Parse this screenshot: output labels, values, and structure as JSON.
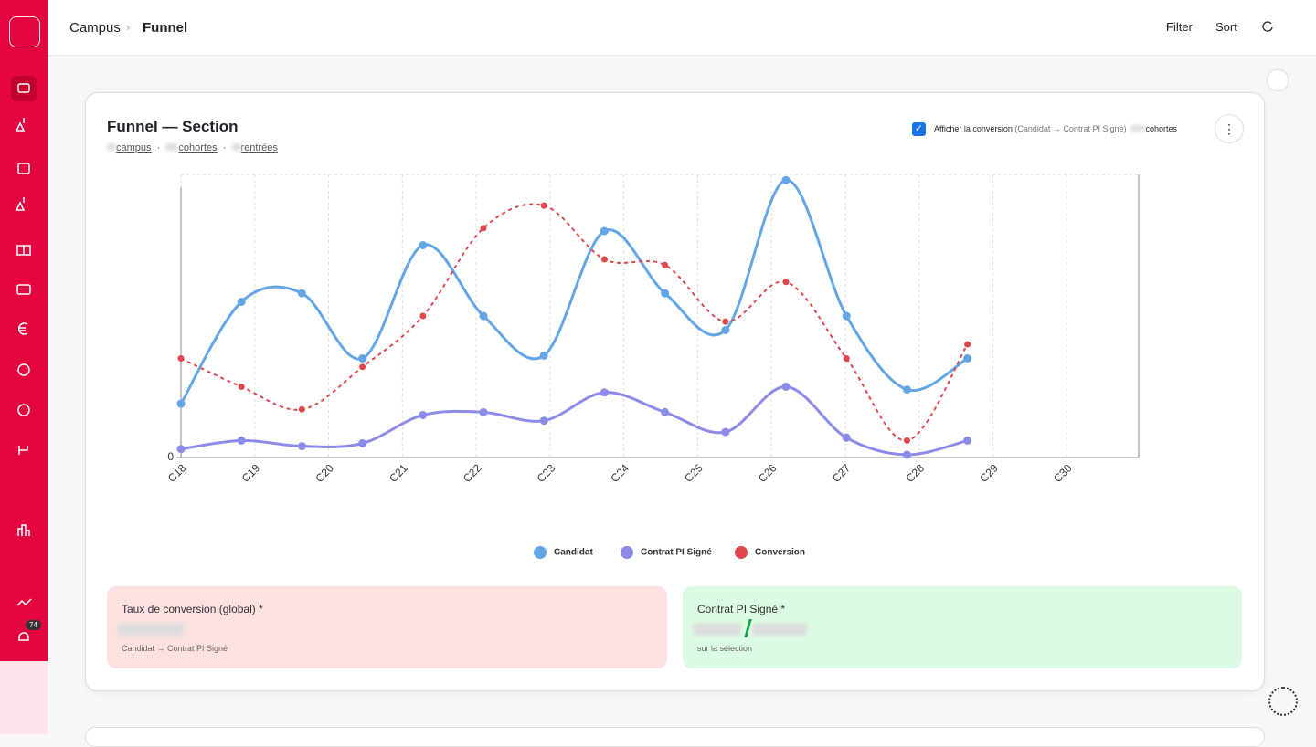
{
  "header": {
    "breadcrumb": [
      "Campus",
      "Funnel"
    ],
    "actions": [
      "Filter",
      "Sort"
    ]
  },
  "sidebar": {
    "badge": "74"
  },
  "card": {
    "title": "Funnel — Section",
    "subtitle": [
      "campus",
      "cohortes",
      "rentrées"
    ],
    "toggle": {
      "label": "Afficher la conversion",
      "detail": "(Candidat → Contrat PI Signé)",
      "extra": "cohortes"
    }
  },
  "chart_data": {
    "type": "line",
    "x": [
      0,
      1,
      2,
      3,
      4,
      5,
      6,
      7,
      8,
      9,
      10,
      11,
      12,
      13
    ],
    "xlim": [
      0,
      15.83
    ],
    "xticks": [
      {
        "value": 0,
        "label": "C18"
      },
      {
        "value": 1.22,
        "label": "C19"
      },
      {
        "value": 2.44,
        "label": "C20"
      },
      {
        "value": 3.66,
        "label": "C21"
      },
      {
        "value": 4.88,
        "label": "C22"
      },
      {
        "value": 6.1,
        "label": "C23"
      },
      {
        "value": 7.32,
        "label": "C24"
      },
      {
        "value": 8.54,
        "label": "C25"
      },
      {
        "value": 9.76,
        "label": "C26"
      },
      {
        "value": 10.98,
        "label": "C27"
      },
      {
        "value": 12.2,
        "label": "C28"
      },
      {
        "value": 13.42,
        "label": "C29"
      },
      {
        "value": 14.64,
        "label": "C30"
      }
    ],
    "ylim": [
      0,
      100
    ],
    "yticks": [
      0
    ],
    "y2lim": [
      0,
      100
    ],
    "series": [
      {
        "name": "Candidat",
        "color": "#64a5e6",
        "values": [
          19,
          55,
          58,
          35,
          75,
          50,
          36,
          80,
          58,
          45,
          98,
          50,
          24,
          35
        ]
      },
      {
        "name": "Contrat PI Signé",
        "color": "#8b8be8",
        "values": [
          3,
          6,
          4,
          5,
          15,
          16,
          13,
          23,
          16,
          9,
          25,
          7,
          1,
          6
        ]
      },
      {
        "name": "Conversion",
        "color": "#e0474c",
        "axis": "y2",
        "dashed": true,
        "values": [
          35,
          25,
          17,
          32,
          50,
          81,
          89,
          70,
          68,
          48,
          62,
          35,
          6,
          40
        ]
      }
    ]
  },
  "kpis": [
    {
      "label": "Taux de conversion (global) *",
      "note": "Candidat → Contrat PI Signé"
    },
    {
      "label": "Contrat PI Signé *",
      "note": "sur la sélection"
    }
  ]
}
